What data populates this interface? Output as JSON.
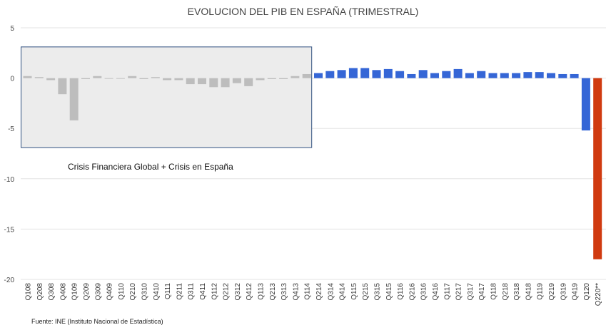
{
  "chart_data": {
    "type": "bar",
    "title": "EVOLUCION DEL PIB EN ESPAÑA (TRIMESTRAL)",
    "xlabel": "",
    "ylabel": "",
    "ylim": [
      -20,
      5
    ],
    "yticks": [
      5,
      0,
      -5,
      -10,
      -15,
      -20
    ],
    "grid": true,
    "categories": [
      "Q108",
      "Q208",
      "Q308",
      "Q408",
      "Q109",
      "Q209",
      "Q309",
      "Q409",
      "Q110",
      "Q210",
      "Q310",
      "Q410",
      "Q111",
      "Q211",
      "Q311",
      "Q411",
      "Q112",
      "Q212",
      "Q312",
      "Q412",
      "Q113",
      "Q213",
      "Q313",
      "Q413",
      "Q114",
      "Q214",
      "Q314",
      "Q414",
      "Q115",
      "Q215",
      "Q315",
      "Q415",
      "Q116",
      "Q216",
      "Q316",
      "Q416",
      "Q117",
      "Q217",
      "Q317",
      "Q417",
      "Q118",
      "Q218",
      "Q318",
      "Q418",
      "Q119",
      "Q219",
      "Q319",
      "Q419",
      "Q120",
      "Q220**"
    ],
    "values": [
      0.2,
      0.1,
      -0.2,
      -1.6,
      -4.2,
      -0.1,
      0.2,
      0.0,
      0.0,
      0.2,
      -0.1,
      0.1,
      -0.2,
      -0.2,
      -0.6,
      -0.6,
      -0.9,
      -0.9,
      -0.5,
      -0.8,
      -0.2,
      -0.1,
      -0.1,
      0.2,
      0.4,
      0.5,
      0.7,
      0.8,
      1.0,
      1.0,
      0.8,
      0.9,
      0.7,
      0.4,
      0.8,
      0.5,
      0.7,
      0.9,
      0.5,
      0.7,
      0.5,
      0.5,
      0.5,
      0.6,
      0.6,
      0.5,
      0.4,
      0.4,
      -5.2,
      -18.0
    ],
    "colors": {
      "crisis": "#bdbdbd",
      "growth": "#3566d6",
      "covid_q1": "#3566d6",
      "covid_q2": "#d03a10",
      "crisis_box_fill": "#ececec",
      "crisis_box_border": "#2f4f7f",
      "grid": "#e3e3e3"
    },
    "crisis_range": [
      "Q108",
      "Q114"
    ],
    "annotation": "Crisis Financiera Global + Crisis en  España",
    "source": "Fuente: INE (Instituto Nacional de Estadística)"
  }
}
